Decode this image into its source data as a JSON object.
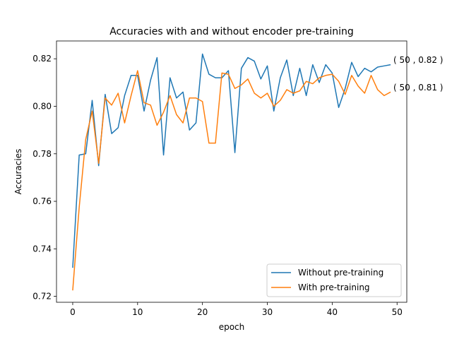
{
  "chart_data": {
    "type": "line",
    "title": "Accuracies with and without encoder pre-training",
    "xlabel": "epoch",
    "ylabel": "Accuracies",
    "xlim": [
      -2.5,
      51.5
    ],
    "ylim": [
      0.7175,
      0.8275
    ],
    "xticks": [
      0,
      10,
      20,
      30,
      40,
      50
    ],
    "yticks": [
      0.72,
      0.74,
      0.76,
      0.78,
      0.8,
      0.82
    ],
    "xtick_labels": [
      "0",
      "10",
      "20",
      "30",
      "40",
      "50"
    ],
    "ytick_labels": [
      "0.72",
      "0.74",
      "0.76",
      "0.78",
      "0.80",
      "0.82"
    ],
    "grid": false,
    "legend_position": "lower right",
    "series": [
      {
        "name": "Without pre-training",
        "color": "#1f77b4",
        "x": [
          0,
          1,
          2,
          3,
          4,
          5,
          6,
          7,
          8,
          9,
          10,
          11,
          12,
          13,
          14,
          15,
          16,
          17,
          18,
          19,
          20,
          21,
          22,
          23,
          24,
          25,
          26,
          27,
          28,
          29,
          30,
          31,
          32,
          33,
          34,
          35,
          36,
          37,
          38,
          39,
          40,
          41,
          42,
          43,
          44,
          45,
          46,
          47,
          48,
          49
        ],
        "values": [
          0.732,
          0.7795,
          0.78,
          0.8025,
          0.775,
          0.805,
          0.7885,
          0.791,
          0.8045,
          0.813,
          0.813,
          0.798,
          0.811,
          0.8205,
          0.7795,
          0.812,
          0.8035,
          0.806,
          0.79,
          0.793,
          0.822,
          0.8135,
          0.812,
          0.812,
          0.815,
          0.7805,
          0.816,
          0.8205,
          0.819,
          0.8115,
          0.817,
          0.798,
          0.812,
          0.8195,
          0.8045,
          0.816,
          0.8045,
          0.8175,
          0.81,
          0.8175,
          0.814,
          0.7995,
          0.8075,
          0.8185,
          0.8125,
          0.816,
          0.8145,
          0.8165,
          0.817,
          0.8175
        ]
      },
      {
        "name": "With pre-training",
        "color": "#ff7f0e",
        "x": [
          0,
          1,
          2,
          3,
          4,
          5,
          6,
          7,
          8,
          9,
          10,
          11,
          12,
          13,
          14,
          15,
          16,
          17,
          18,
          19,
          20,
          21,
          22,
          23,
          24,
          25,
          26,
          27,
          28,
          29,
          30,
          31,
          32,
          33,
          34,
          35,
          36,
          37,
          38,
          39,
          40,
          41,
          42,
          43,
          44,
          45,
          46,
          47,
          48,
          49
        ],
        "values": [
          0.7225,
          0.7575,
          0.786,
          0.798,
          0.776,
          0.8035,
          0.8005,
          0.8055,
          0.793,
          0.8045,
          0.815,
          0.8015,
          0.8005,
          0.792,
          0.7975,
          0.8045,
          0.7965,
          0.793,
          0.8035,
          0.8035,
          0.802,
          0.7845,
          0.7845,
          0.814,
          0.8135,
          0.8075,
          0.809,
          0.8115,
          0.8055,
          0.8035,
          0.8055,
          0.8,
          0.8025,
          0.807,
          0.8055,
          0.8065,
          0.8105,
          0.8095,
          0.812,
          0.813,
          0.8135,
          0.8105,
          0.805,
          0.813,
          0.8085,
          0.8055,
          0.813,
          0.807,
          0.8045,
          0.806
        ]
      }
    ],
    "annotations": [
      {
        "text": "( 50 , 0.82 )",
        "x": 49,
        "y": 0.8175
      },
      {
        "text": "( 50 , 0.81 )",
        "x": 49,
        "y": 0.806
      }
    ]
  }
}
